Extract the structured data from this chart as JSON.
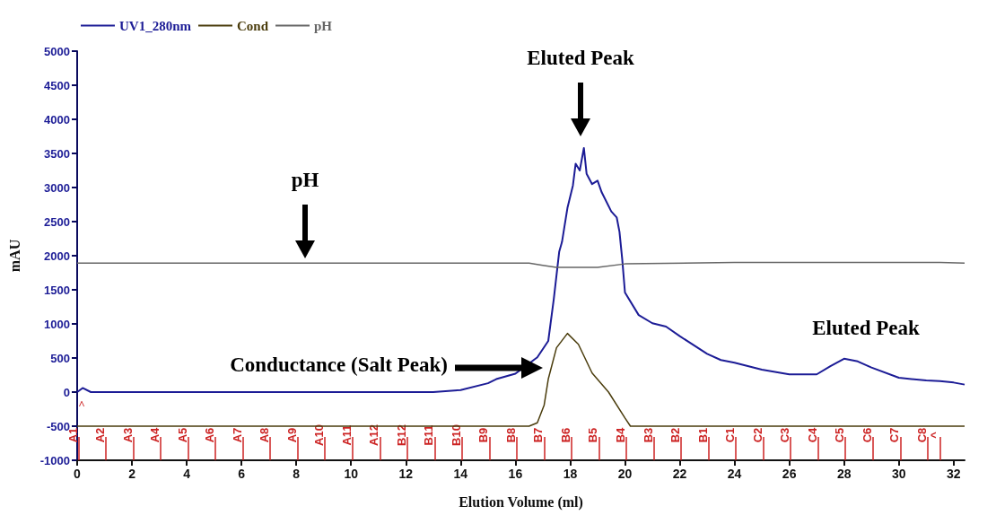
{
  "chart_data": {
    "type": "line",
    "xlabel": "Elution Volume (ml)",
    "ylabel": "mAU",
    "xlim": [
      0,
      32.4
    ],
    "xticks": [
      0,
      2,
      4,
      6,
      8,
      10,
      12,
      14,
      16,
      18,
      20,
      22,
      24,
      26,
      28,
      30,
      32
    ],
    "ylim": [
      -1000,
      5000
    ],
    "yticks": [
      -1000,
      -500,
      0,
      500,
      1000,
      1500,
      2000,
      2500,
      3000,
      3500,
      4000,
      4500,
      5000
    ],
    "grid": false,
    "legend": "top left",
    "marker": "none",
    "series": [
      {
        "name": "UV1_280nm",
        "color": "#1c1c96",
        "x": [
          0,
          0.2,
          0.5,
          13,
          14,
          15,
          15.3,
          16.0,
          16.8,
          17.2,
          17.4,
          17.6,
          17.7,
          17.9,
          18.1,
          18.2,
          18.35,
          18.5,
          18.6,
          18.8,
          19.0,
          19.15,
          19.5,
          19.7,
          19.8,
          19.9,
          20.0,
          20.5,
          21,
          21.5,
          22,
          23,
          23.5,
          24,
          25,
          26,
          27,
          27.5,
          28,
          28.5,
          29,
          30,
          31,
          31.5,
          32,
          32.4
        ],
        "values": [
          0,
          60,
          0,
          0,
          30,
          130,
          190,
          270,
          510,
          750,
          1360,
          2060,
          2200,
          2700,
          3030,
          3350,
          3250,
          3580,
          3200,
          3050,
          3100,
          2930,
          2650,
          2560,
          2350,
          1950,
          1460,
          1130,
          1010,
          960,
          820,
          560,
          470,
          430,
          330,
          260,
          260,
          380,
          490,
          450,
          360,
          210,
          170,
          160,
          140,
          110
        ]
      },
      {
        "name": "Cond",
        "color": "#4a3c0c",
        "x": [
          0,
          16.5,
          16.8,
          17.05,
          17.2,
          17.5,
          17.9,
          18.3,
          18.8,
          19.4,
          20.0,
          20.2,
          32.4
        ],
        "values": [
          -500,
          -500,
          -450,
          -190,
          190,
          650,
          860,
          700,
          280,
          0,
          -380,
          -500,
          -500
        ]
      },
      {
        "name": "pH",
        "color": "#666666",
        "x": [
          0,
          16.5,
          17,
          17.5,
          19,
          20,
          24,
          31.5,
          32.4
        ],
        "values": [
          1890,
          1890,
          1860,
          1830,
          1830,
          1880,
          1900,
          1900,
          1890
        ]
      }
    ],
    "annotations": [
      "Eluted Peak",
      "pH",
      "Conductance (Salt Peak)",
      "Eluted Peak",
      "^"
    ],
    "ref_lines": [
      {
        "axis": "x",
        "value": 0.05,
        "label": "A1",
        "color": "#cc2222"
      },
      {
        "axis": "x",
        "value": 1.05,
        "label": "A2",
        "color": "#cc2222"
      },
      {
        "axis": "x",
        "value": 2.05,
        "label": "A3",
        "color": "#cc2222"
      },
      {
        "axis": "x",
        "value": 3.05,
        "label": "A4",
        "color": "#cc2222"
      },
      {
        "axis": "x",
        "value": 4.05,
        "label": "A5",
        "color": "#cc2222"
      },
      {
        "axis": "x",
        "value": 5.05,
        "label": "A6",
        "color": "#cc2222"
      },
      {
        "axis": "x",
        "value": 6.05,
        "label": "A7",
        "color": "#cc2222"
      },
      {
        "axis": "x",
        "value": 7.05,
        "label": "A8",
        "color": "#cc2222"
      },
      {
        "axis": "x",
        "value": 8.05,
        "label": "A9",
        "color": "#cc2222"
      },
      {
        "axis": "x",
        "value": 9.05,
        "label": "A10",
        "color": "#cc2222"
      },
      {
        "axis": "x",
        "value": 10.05,
        "label": "A11",
        "color": "#cc2222"
      },
      {
        "axis": "x",
        "value": 11.05,
        "label": "A12",
        "color": "#cc2222"
      },
      {
        "axis": "x",
        "value": 12.05,
        "label": "B12",
        "color": "#cc2222"
      },
      {
        "axis": "x",
        "value": 13.05,
        "label": "B11",
        "color": "#cc2222"
      },
      {
        "axis": "x",
        "value": 14.05,
        "label": "B10",
        "color": "#cc2222"
      },
      {
        "axis": "x",
        "value": 15.05,
        "label": "B9",
        "color": "#cc2222"
      },
      {
        "axis": "x",
        "value": 16.05,
        "label": "B8",
        "color": "#cc2222"
      },
      {
        "axis": "x",
        "value": 17.05,
        "label": "B7",
        "color": "#cc2222"
      },
      {
        "axis": "x",
        "value": 18.05,
        "label": "B6",
        "color": "#cc2222"
      },
      {
        "axis": "x",
        "value": 19.05,
        "label": "B5",
        "color": "#cc2222"
      },
      {
        "axis": "x",
        "value": 20.05,
        "label": "B4",
        "color": "#cc2222"
      },
      {
        "axis": "x",
        "value": 21.05,
        "label": "B3",
        "color": "#cc2222"
      },
      {
        "axis": "x",
        "value": 22.05,
        "label": "B2",
        "color": "#cc2222"
      },
      {
        "axis": "x",
        "value": 23.05,
        "label": "B1",
        "color": "#cc2222"
      },
      {
        "axis": "x",
        "value": 24.05,
        "label": "C1",
        "color": "#cc2222"
      },
      {
        "axis": "x",
        "value": 25.05,
        "label": "C2",
        "color": "#cc2222"
      },
      {
        "axis": "x",
        "value": 26.05,
        "label": "C3",
        "color": "#cc2222"
      },
      {
        "axis": "x",
        "value": 27.05,
        "label": "C4",
        "color": "#cc2222"
      },
      {
        "axis": "x",
        "value": 28.05,
        "label": "C5",
        "color": "#cc2222"
      },
      {
        "axis": "x",
        "value": 29.05,
        "label": "C6",
        "color": "#cc2222"
      },
      {
        "axis": "x",
        "value": 30.05,
        "label": "C7",
        "color": "#cc2222"
      },
      {
        "axis": "x",
        "value": 31.05,
        "label": "C8",
        "color": "#cc2222"
      },
      {
        "axis": "x",
        "value": 31.5,
        "label": "^",
        "color": "#cc2222"
      }
    ]
  }
}
